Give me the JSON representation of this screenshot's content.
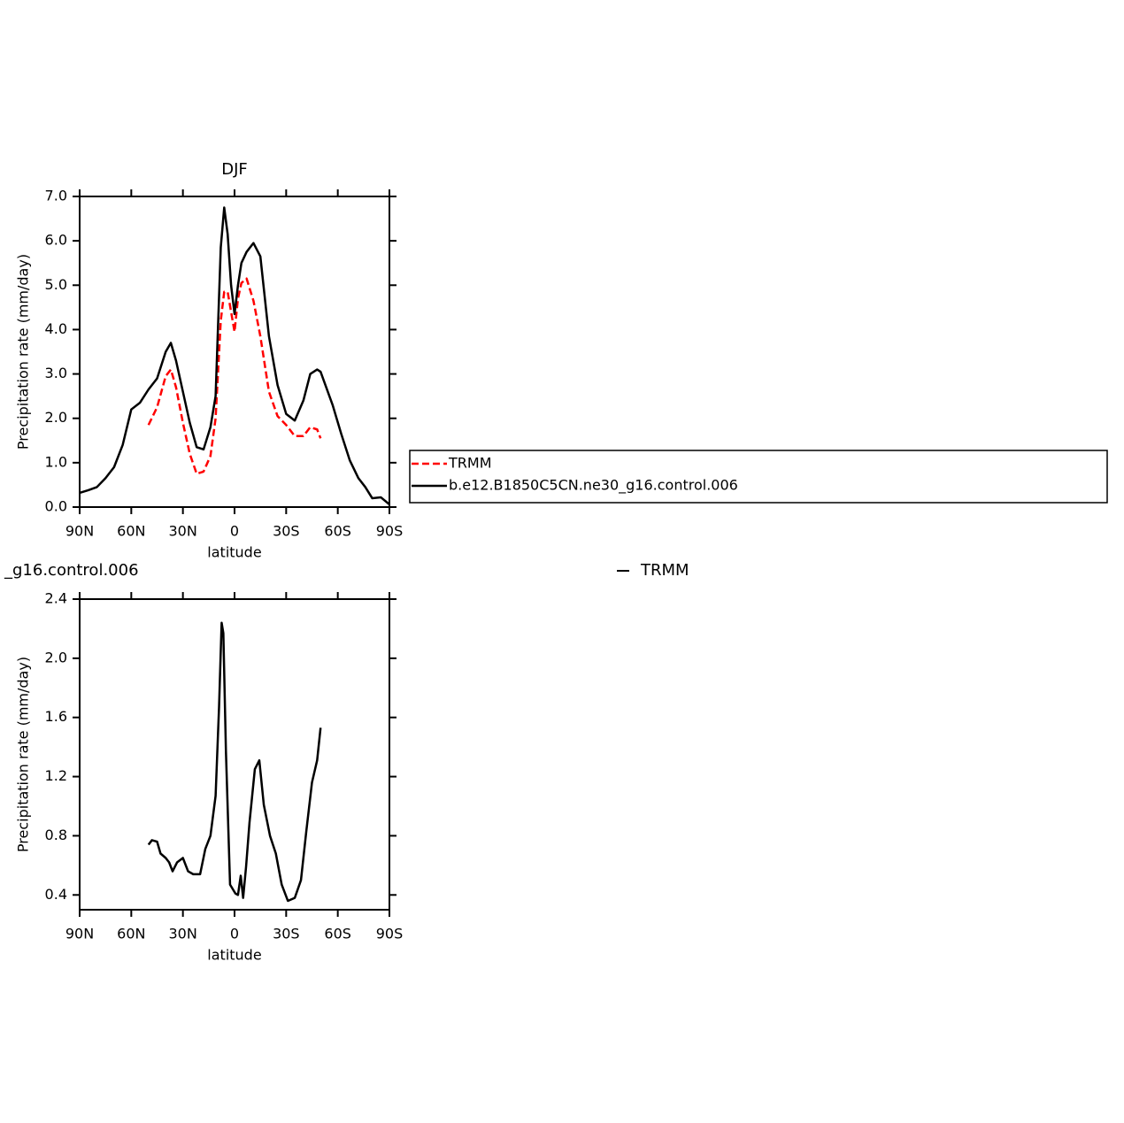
{
  "chart_data": [
    {
      "type": "line",
      "title": "DJF",
      "ylabel": "Precipitation rate (mm/day)",
      "xlabel": "latitude",
      "xlim": [
        90,
        -90
      ],
      "xticks": [
        {
          "value": 90,
          "label": "90N"
        },
        {
          "value": 60,
          "label": "60N"
        },
        {
          "value": 30,
          "label": "30N"
        },
        0,
        {
          "value": -30,
          "label": "30S"
        },
        {
          "value": -60,
          "label": "60S"
        },
        {
          "value": -90,
          "label": "90S"
        }
      ],
      "ylim": [
        0,
        7
      ],
      "yticks": [
        {
          "value": 0,
          "label": "0.0"
        },
        {
          "value": 1,
          "label": "1.0"
        },
        {
          "value": 2,
          "label": "2.0"
        },
        {
          "value": 3,
          "label": "3.0"
        },
        {
          "value": 4,
          "label": "4.0"
        },
        {
          "value": 5,
          "label": "5.0"
        },
        {
          "value": 6,
          "label": "6.0"
        },
        {
          "value": 7,
          "label": "7.0"
        }
      ],
      "x": [
        90,
        85,
        80,
        75,
        70,
        65,
        60,
        55,
        50,
        45,
        40,
        37,
        34,
        30,
        26,
        22,
        18,
        14,
        11,
        8,
        6,
        4,
        2,
        0,
        -2,
        -4,
        -7,
        -11,
        -15,
        -20,
        -25,
        -30,
        -35,
        -40,
        -44,
        -48,
        -50,
        -57,
        -62,
        -67,
        -72,
        -76,
        -80,
        -85,
        -90
      ],
      "series": [
        {
          "name": "TRMM",
          "color": "#ff0000",
          "dashed": true,
          "values": [
            null,
            null,
            null,
            null,
            null,
            null,
            null,
            null,
            1.85,
            2.25,
            2.95,
            3.1,
            2.7,
            1.9,
            1.2,
            0.75,
            0.8,
            1.15,
            2.0,
            4.2,
            4.85,
            4.85,
            4.4,
            3.95,
            4.7,
            5.05,
            5.15,
            4.65,
            3.85,
            2.6,
            2.05,
            1.85,
            1.6,
            1.6,
            1.8,
            1.75,
            1.55,
            null,
            null,
            null,
            null,
            null,
            null,
            null,
            null
          ]
        },
        {
          "name": "b.e12.B1850C5CN.ne30_g16.control.006",
          "color": "#000000",
          "dashed": false,
          "values": [
            0.32,
            0.38,
            0.45,
            0.65,
            0.9,
            1.4,
            2.2,
            2.35,
            2.65,
            2.9,
            3.5,
            3.7,
            3.3,
            2.6,
            1.9,
            1.35,
            1.3,
            1.8,
            2.5,
            5.85,
            6.75,
            6.15,
            5.0,
            4.35,
            5.0,
            5.5,
            5.75,
            5.95,
            5.65,
            3.85,
            2.75,
            2.1,
            1.95,
            2.4,
            3.0,
            3.1,
            3.05,
            2.3,
            1.65,
            1.05,
            0.65,
            0.45,
            0.2,
            0.22,
            0.06
          ]
        }
      ]
    },
    {
      "type": "line",
      "title_left": "_g16.control.006",
      "title_right": "TRMM",
      "ylabel": "Precipitation rate (mm/day)",
      "xlabel": "latitude",
      "xlim": [
        90,
        -90
      ],
      "xticks": [
        {
          "value": 90,
          "label": "90N"
        },
        {
          "value": 60,
          "label": "60N"
        },
        {
          "value": 30,
          "label": "30N"
        },
        0,
        {
          "value": -30,
          "label": "30S"
        },
        {
          "value": -60,
          "label": "60S"
        },
        {
          "value": -90,
          "label": "90S"
        }
      ],
      "ylim": [
        0.3,
        2.4
      ],
      "yticks": [
        0.4,
        0.8,
        1.2,
        1.6,
        {
          "value": 2,
          "label": "2.0"
        },
        2.4
      ],
      "x": [
        50,
        48,
        45,
        43,
        40,
        38,
        36,
        33.4,
        30,
        27,
        24,
        20,
        17,
        14,
        11,
        9,
        7.5,
        6.5,
        5,
        2.6,
        -0.5,
        -2,
        -3.6,
        -5,
        -6.7,
        -8.7,
        -11.8,
        -14.4,
        -17,
        -20.6,
        -24,
        -27.4,
        -31,
        -35,
        -38.6,
        -41.7,
        -45,
        -48,
        -50
      ],
      "series": [
        {
          "color": "#000000",
          "dashed": false,
          "values": [
            0.74,
            0.77,
            0.76,
            0.68,
            0.65,
            0.62,
            0.56,
            0.62,
            0.65,
            0.56,
            0.54,
            0.54,
            0.71,
            0.8,
            1.07,
            1.67,
            2.24,
            2.17,
            1.37,
            0.47,
            0.41,
            0.4,
            0.53,
            0.38,
            0.59,
            0.89,
            1.25,
            1.31,
            1.01,
            0.8,
            0.68,
            0.47,
            0.36,
            0.38,
            0.5,
            0.83,
            1.16,
            1.31,
            1.53
          ]
        }
      ]
    }
  ]
}
